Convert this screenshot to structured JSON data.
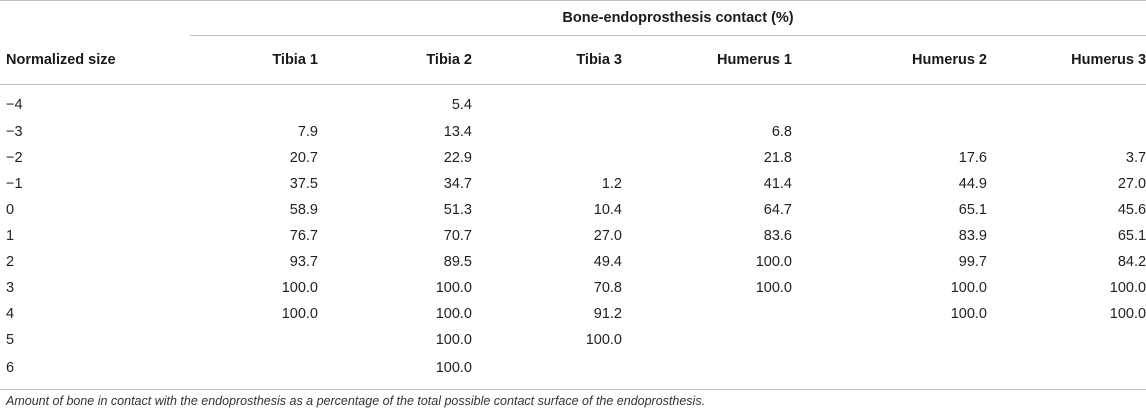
{
  "table": {
    "group_header": "Bone-endoprosthesis contact (%)",
    "columns": [
      "Normalized size",
      "Tibia 1",
      "Tibia 2",
      "Tibia 3",
      "Humerus 1",
      "Humerus 2",
      "Humerus 3"
    ],
    "rows": [
      [
        "−4",
        "",
        "5.4",
        "",
        "",
        "",
        ""
      ],
      [
        "−3",
        "7.9",
        "13.4",
        "",
        "6.8",
        "",
        ""
      ],
      [
        "−2",
        "20.7",
        "22.9",
        "",
        "21.8",
        "17.6",
        "3.7"
      ],
      [
        "−1",
        "37.5",
        "34.7",
        "1.2",
        "41.4",
        "44.9",
        "27.0"
      ],
      [
        "0",
        "58.9",
        "51.3",
        "10.4",
        "64.7",
        "65.1",
        "45.6"
      ],
      [
        "1",
        "76.7",
        "70.7",
        "27.0",
        "83.6",
        "83.9",
        "65.1"
      ],
      [
        "2",
        "93.7",
        "89.5",
        "49.4",
        "100.0",
        "99.7",
        "84.2"
      ],
      [
        "3",
        "100.0",
        "100.0",
        "70.8",
        "100.0",
        "100.0",
        "100.0"
      ],
      [
        "4",
        "100.0",
        "100.0",
        "91.2",
        "",
        "100.0",
        "100.0"
      ],
      [
        "5",
        "",
        "100.0",
        "100.0",
        "",
        "",
        ""
      ],
      [
        "6",
        "",
        "100.0",
        "",
        "",
        "",
        ""
      ]
    ]
  },
  "footnote": "Amount of bone in contact with the endoprosthesis as a percentage of the total possible contact surface of the endoprosthesis.",
  "colors": {
    "text": "#222222",
    "rule": "#bfbfbf",
    "background": "#ffffff"
  }
}
